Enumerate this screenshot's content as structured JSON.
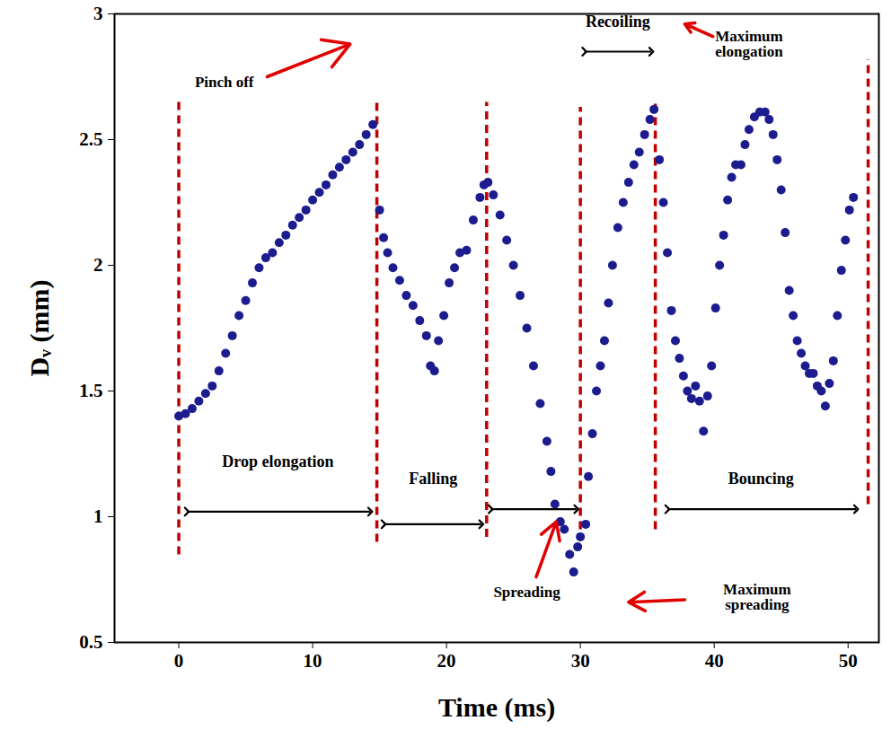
{
  "chart_data": {
    "type": "scatter",
    "color": "#1c1c8f",
    "marker": "circle",
    "xlabel": "Time (ms)",
    "ylabel": "Dᵥ (mm)",
    "xlim": [
      -4.8,
      52.3
    ],
    "ylim": [
      0.5,
      3
    ],
    "xticks": [
      0,
      10,
      20,
      30,
      40,
      50
    ],
    "yticks": [
      0.5,
      1,
      1.5,
      2,
      2.5,
      3
    ],
    "grid": false,
    "x": [
      0,
      0.5,
      1,
      1.5,
      2,
      2.5,
      3,
      3.5,
      4,
      4.5,
      5,
      5.5,
      6,
      6.5,
      7,
      7.5,
      8,
      8.5,
      9,
      9.5,
      10,
      10.5,
      11,
      11.5,
      12,
      12.5,
      13,
      13.5,
      14,
      14.5,
      15,
      15.3,
      15.6,
      16,
      16.5,
      17,
      17.5,
      18,
      18.5,
      18.8,
      19.1,
      19.4,
      19.8,
      20.2,
      20.6,
      21,
      21.5,
      22,
      22.5,
      22.8,
      23.1,
      23.5,
      24,
      24.5,
      25,
      25.5,
      26,
      26.5,
      27,
      27.5,
      27.8,
      28.1,
      28.5,
      28.8,
      29.2,
      29.5,
      29.8,
      30,
      30.4,
      30.6,
      30.9,
      31.2,
      31.5,
      31.8,
      32.1,
      32.4,
      32.8,
      33.2,
      33.6,
      34,
      34.4,
      34.8,
      35.2,
      35.5,
      35.9,
      36.2,
      36.5,
      36.8,
      37.1,
      37.4,
      37.7,
      38,
      38.3,
      38.6,
      38.9,
      39.2,
      39.5,
      39.8,
      40.1,
      40.4,
      40.7,
      41,
      41.3,
      41.6,
      42,
      42.3,
      42.6,
      43,
      43.4,
      43.8,
      44.1,
      44.4,
      44.7,
      45,
      45.3,
      45.6,
      45.9,
      46.2,
      46.5,
      46.8,
      47.1,
      47.4,
      47.7,
      48,
      48.3,
      48.6,
      48.9,
      49.2,
      49.5,
      49.8,
      50.1,
      50.4
    ],
    "values": [
      1.4,
      1.41,
      1.43,
      1.46,
      1.49,
      1.52,
      1.58,
      1.65,
      1.72,
      1.8,
      1.86,
      1.93,
      1.99,
      2.03,
      2.05,
      2.09,
      2.12,
      2.16,
      2.19,
      2.22,
      2.26,
      2.29,
      2.32,
      2.36,
      2.39,
      2.42,
      2.45,
      2.48,
      2.52,
      2.56,
      2.22,
      2.11,
      2.05,
      1.99,
      1.94,
      1.88,
      1.84,
      1.78,
      1.72,
      1.6,
      1.58,
      1.7,
      1.8,
      1.93,
      1.99,
      2.05,
      2.06,
      2.18,
      2.27,
      2.32,
      2.33,
      2.28,
      2.2,
      2.1,
      2.0,
      1.88,
      1.75,
      1.6,
      1.45,
      1.3,
      1.18,
      1.05,
      0.98,
      0.95,
      0.85,
      0.78,
      0.88,
      0.92,
      0.97,
      1.16,
      1.33,
      1.5,
      1.6,
      1.7,
      1.85,
      2.0,
      2.15,
      2.25,
      2.33,
      2.4,
      2.45,
      2.52,
      2.58,
      2.62,
      2.42,
      2.25,
      2.05,
      1.82,
      1.7,
      1.63,
      1.56,
      1.5,
      1.47,
      1.52,
      1.46,
      1.34,
      1.48,
      1.6,
      1.83,
      2.0,
      2.12,
      2.26,
      2.35,
      2.4,
      2.4,
      2.48,
      2.54,
      2.59,
      2.61,
      2.61,
      2.58,
      2.52,
      2.42,
      2.3,
      2.13,
      1.9,
      1.8,
      1.7,
      1.65,
      1.6,
      1.57,
      1.57,
      1.52,
      1.5,
      1.44,
      1.53,
      1.62,
      1.8,
      1.98,
      2.1,
      2.22,
      2.27
    ],
    "boundaries": [
      {
        "x": 0,
        "y": [
          0.85,
          2.65
        ]
      },
      {
        "x": 14.8,
        "y": [
          0.9,
          2.65
        ]
      },
      {
        "x": 23,
        "y": [
          0.92,
          2.65
        ]
      },
      {
        "x": 30,
        "y": [
          0.95,
          2.63
        ]
      },
      {
        "x": 35.6,
        "y": [
          0.95,
          2.65
        ]
      },
      {
        "x": 51.5,
        "y": [
          1.05,
          2.82
        ]
      }
    ],
    "boundary_color": "#c00000",
    "phases": [
      {
        "label": "Drop elongation",
        "from": 0.6,
        "to": 14.3,
        "y": 1.02,
        "label_x": 7.4,
        "label_y": 1.22
      },
      {
        "label": "Falling",
        "from": 15.3,
        "to": 22.6,
        "y": 0.97,
        "label_x": 19,
        "label_y": 1.15
      },
      {
        "label": null,
        "from": 23.3,
        "to": 29.7,
        "y": 1.03,
        "label_x": null,
        "label_y": null
      },
      {
        "label": "Recoiling",
        "from": 30.3,
        "to": 35.3,
        "y": 2.85,
        "label_x": 32.8,
        "label_y": 2.97
      },
      {
        "label": "Bouncing",
        "from": 36.5,
        "to": 50.6,
        "y": 1.03,
        "label_x": 43.5,
        "label_y": 1.15
      }
    ],
    "annotations": [
      {
        "text": "Pinch off",
        "x": 3.4,
        "y": 2.73,
        "arrow_from": [
          6.6,
          2.75
        ],
        "arrow_to": [
          12.8,
          2.88
        ]
      },
      {
        "text": "Spreading",
        "x": 26,
        "y": 0.7,
        "arrow_from": [
          26.7,
          0.76
        ],
        "arrow_to": [
          28.2,
          0.98
        ]
      },
      {
        "text": "Maximum spreading",
        "x": 43.2,
        "y": 0.68,
        "arrow_from": [
          37.8,
          0.67
        ],
        "arrow_to": [
          33.6,
          0.66
        ]
      },
      {
        "text": "Maximum elongation",
        "x": 42.6,
        "y": 2.88,
        "arrow_from": [
          39.9,
          2.91
        ],
        "arrow_to": [
          37.8,
          2.96
        ]
      }
    ],
    "annotation_color": "#e00000"
  }
}
